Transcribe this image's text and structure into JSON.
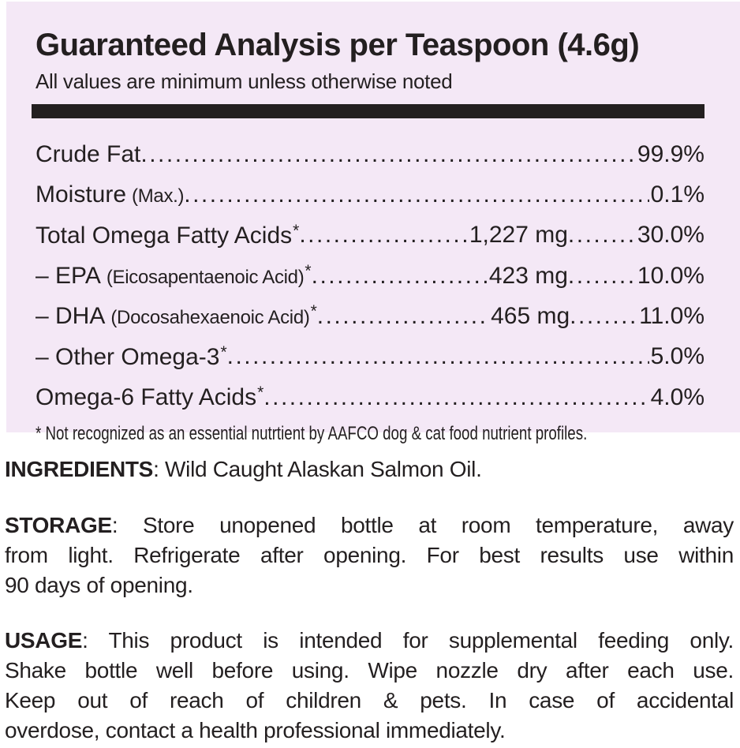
{
  "panel": {
    "title": "Guaranteed Analysis per Teaspoon (4.6g)",
    "subtitle": "All values are minimum unless otherwise noted",
    "rows": [
      {
        "name": "Crude Fat",
        "paren": "",
        "ast": "",
        "mg": "",
        "pct": "99.9%"
      },
      {
        "name": "Moisture",
        "paren": "(Max.)",
        "ast": "",
        "mg": "",
        "pct": "0.1%"
      },
      {
        "name": "Total Omega Fatty Acids",
        "paren": "",
        "ast": "*",
        "mg": "1,227 mg",
        "pct": "30.0%"
      },
      {
        "name": "– EPA",
        "paren": "(Eicosapentaenoic Acid)",
        "ast": "*",
        "mg": "423 mg",
        "pct": "10.0%"
      },
      {
        "name": "– DHA",
        "paren": "(Docosahexaenoic Acid)",
        "ast": "*",
        "mg": "465 mg",
        "pct": "11.0%"
      },
      {
        "name": "– Other Omega-3",
        "paren": "",
        "ast": "*",
        "mg": "",
        "pct": "5.0%"
      },
      {
        "name": "Omega-6 Fatty Acids",
        "paren": "",
        "ast": "*",
        "mg": "",
        "pct": "4.0%"
      }
    ],
    "footnote": "* Not recognized as an essential nutrtient by AAFCO dog & cat food nutrient profiles."
  },
  "ingredients": {
    "head": "INGREDIENTS",
    "rest": ": Wild Caught Alaskan Salmon Oil."
  },
  "storage": {
    "head": "STORAGE",
    "line1_rest": ": Store unopened bottle at room temperature, away",
    "line2": "from light. Refrigerate after opening. For best results use within",
    "line3": "90 days of opening."
  },
  "usage": {
    "head": "USAGE",
    "line1_rest": ": This product is intended for supplemental feeding only.",
    "line2": "Shake bottle well before using. Wipe nozzle dry after each use.",
    "line3": "Keep out of reach of children & pets. In case of accidental",
    "line4": "overdose, contact a health professional immediately."
  },
  "colors": {
    "panel_bg": "#f4e8f6",
    "text": "#231f20",
    "divider_bar": "#231f20",
    "page_bg": "#ffffff"
  }
}
